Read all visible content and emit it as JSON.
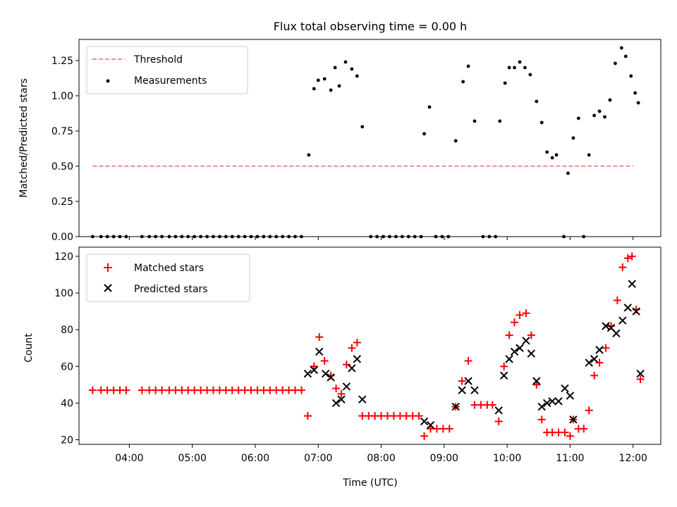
{
  "chart_data": [
    {
      "panel": "top",
      "type": "scatter",
      "title": "Flux total observing time = 0.00 h",
      "xlabel": "",
      "ylabel": "Matched/Predicted stars",
      "xlim_hours": [
        3.2,
        12.44
      ],
      "ylim": [
        0.0,
        1.4
      ],
      "yticks": [
        "0.00",
        "0.25",
        "0.50",
        "0.75",
        "1.00",
        "1.25"
      ],
      "legend_position": "top-left",
      "grid": false,
      "threshold": {
        "name": "Threshold",
        "value": 0.5,
        "x_range": [
          "03:25",
          "12:00"
        ],
        "color": "#f08080",
        "style": "dashed"
      },
      "series": [
        {
          "name": "Measurements",
          "color": "#000000",
          "marker": "dot",
          "points": [
            [
              "03:25",
              0
            ],
            [
              "03:33",
              0
            ],
            [
              "03:39",
              0
            ],
            [
              "03:45",
              0
            ],
            [
              "03:51",
              0
            ],
            [
              "03:57",
              0
            ],
            [
              "04:12",
              0
            ],
            [
              "04:19",
              0
            ],
            [
              "04:25",
              0
            ],
            [
              "04:31",
              0
            ],
            [
              "04:38",
              0
            ],
            [
              "04:44",
              0
            ],
            [
              "04:50",
              0
            ],
            [
              "04:56",
              0
            ],
            [
              "05:02",
              0
            ],
            [
              "05:08",
              0
            ],
            [
              "05:14",
              0
            ],
            [
              "05:20",
              0
            ],
            [
              "05:26",
              0
            ],
            [
              "05:32",
              0
            ],
            [
              "05:38",
              0
            ],
            [
              "05:44",
              0
            ],
            [
              "05:50",
              0
            ],
            [
              "05:56",
              0
            ],
            [
              "06:02",
              0
            ],
            [
              "06:08",
              0
            ],
            [
              "06:14",
              0
            ],
            [
              "06:20",
              0
            ],
            [
              "06:26",
              0
            ],
            [
              "06:32",
              0
            ],
            [
              "06:38",
              0
            ],
            [
              "06:44",
              0
            ],
            [
              "06:51",
              0.58
            ],
            [
              "06:56",
              1.05
            ],
            [
              "07:00",
              1.11
            ],
            [
              "07:06",
              1.12
            ],
            [
              "07:12",
              1.04
            ],
            [
              "07:16",
              1.2
            ],
            [
              "07:20",
              1.07
            ],
            [
              "07:26",
              1.24
            ],
            [
              "07:32",
              1.19
            ],
            [
              "07:37",
              1.14
            ],
            [
              "07:42",
              0.78
            ],
            [
              "07:50",
              0
            ],
            [
              "07:56",
              0
            ],
            [
              "08:02",
              0
            ],
            [
              "08:08",
              0
            ],
            [
              "08:14",
              0
            ],
            [
              "08:20",
              0
            ],
            [
              "08:26",
              0
            ],
            [
              "08:32",
              0
            ],
            [
              "08:38",
              0
            ],
            [
              "08:41",
              0.73
            ],
            [
              "08:46",
              0.92
            ],
            [
              "08:52",
              0
            ],
            [
              "08:58",
              0
            ],
            [
              "09:04",
              0
            ],
            [
              "09:11",
              0.68
            ],
            [
              "09:18",
              1.1
            ],
            [
              "09:23",
              1.21
            ],
            [
              "09:29",
              0.82
            ],
            [
              "09:37",
              0
            ],
            [
              "09:43",
              0
            ],
            [
              "09:49",
              0
            ],
            [
              "09:53",
              0.82
            ],
            [
              "09:58",
              1.09
            ],
            [
              "10:02",
              1.2
            ],
            [
              "10:07",
              1.2
            ],
            [
              "10:12",
              1.24
            ],
            [
              "10:17",
              1.2
            ],
            [
              "10:22",
              1.15
            ],
            [
              "10:28",
              0.96
            ],
            [
              "10:33",
              0.81
            ],
            [
              "10:38",
              0.6
            ],
            [
              "10:43",
              0.56
            ],
            [
              "10:47",
              0.58
            ],
            [
              "10:54",
              0
            ],
            [
              "10:58",
              0.45
            ],
            [
              "11:03",
              0.7
            ],
            [
              "11:08",
              0.84
            ],
            [
              "11:13",
              0
            ],
            [
              "11:18",
              0.58
            ],
            [
              "11:23",
              0.86
            ],
            [
              "11:28",
              0.89
            ],
            [
              "11:33",
              0.85
            ],
            [
              "11:38",
              0.97
            ],
            [
              "11:43",
              1.23
            ],
            [
              "11:49",
              1.34
            ],
            [
              "11:53",
              1.28
            ],
            [
              "11:58",
              1.14
            ],
            [
              "12:02",
              1.02
            ],
            [
              "12:05",
              0.95
            ]
          ]
        }
      ]
    },
    {
      "panel": "bottom",
      "type": "scatter",
      "title": "",
      "xlabel": "Time (UTC)",
      "ylabel": "Count",
      "xlim_hours": [
        3.2,
        12.44
      ],
      "ylim": [
        17.5,
        125
      ],
      "yticks": [
        "20",
        "40",
        "60",
        "80",
        "100",
        "120"
      ],
      "xticks": [
        "04:00",
        "05:00",
        "06:00",
        "07:00",
        "08:00",
        "09:00",
        "10:00",
        "11:00",
        "12:00"
      ],
      "legend_position": "top-left",
      "grid": false,
      "series": [
        {
          "name": "Matched stars",
          "color": "#ff0000",
          "marker": "plus",
          "points": [
            [
              "03:25",
              47
            ],
            [
              "03:33",
              47
            ],
            [
              "03:39",
              47
            ],
            [
              "03:45",
              47
            ],
            [
              "03:51",
              47
            ],
            [
              "03:57",
              47
            ],
            [
              "04:12",
              47
            ],
            [
              "04:19",
              47
            ],
            [
              "04:25",
              47
            ],
            [
              "04:31",
              47
            ],
            [
              "04:38",
              47
            ],
            [
              "04:44",
              47
            ],
            [
              "04:50",
              47
            ],
            [
              "04:56",
              47
            ],
            [
              "05:02",
              47
            ],
            [
              "05:08",
              47
            ],
            [
              "05:14",
              47
            ],
            [
              "05:20",
              47
            ],
            [
              "05:26",
              47
            ],
            [
              "05:32",
              47
            ],
            [
              "05:38",
              47
            ],
            [
              "05:44",
              47
            ],
            [
              "05:50",
              47
            ],
            [
              "05:56",
              47
            ],
            [
              "06:02",
              47
            ],
            [
              "06:08",
              47
            ],
            [
              "06:14",
              47
            ],
            [
              "06:20",
              47
            ],
            [
              "06:26",
              47
            ],
            [
              "06:32",
              47
            ],
            [
              "06:38",
              47
            ],
            [
              "06:44",
              47
            ],
            [
              "06:50",
              33
            ],
            [
              "06:56",
              60
            ],
            [
              "07:01",
              76
            ],
            [
              "07:06",
              63
            ],
            [
              "07:12",
              55
            ],
            [
              "07:17",
              48
            ],
            [
              "07:22",
              45
            ],
            [
              "07:27",
              61
            ],
            [
              "07:32",
              70
            ],
            [
              "07:37",
              73
            ],
            [
              "07:42",
              33
            ],
            [
              "07:48",
              33
            ],
            [
              "07:54",
              33
            ],
            [
              "08:00",
              33
            ],
            [
              "08:06",
              33
            ],
            [
              "08:12",
              33
            ],
            [
              "08:18",
              33
            ],
            [
              "08:24",
              33
            ],
            [
              "08:30",
              33
            ],
            [
              "08:36",
              33
            ],
            [
              "08:41",
              22
            ],
            [
              "08:47",
              26
            ],
            [
              "08:53",
              26
            ],
            [
              "08:59",
              26
            ],
            [
              "09:05",
              26
            ],
            [
              "09:11",
              38
            ],
            [
              "09:17",
              52
            ],
            [
              "09:23",
              63
            ],
            [
              "09:29",
              39
            ],
            [
              "09:35",
              39
            ],
            [
              "09:41",
              39
            ],
            [
              "09:46",
              39
            ],
            [
              "09:52",
              30
            ],
            [
              "09:57",
              60
            ],
            [
              "10:02",
              77
            ],
            [
              "10:07",
              84
            ],
            [
              "10:12",
              88
            ],
            [
              "10:18",
              89
            ],
            [
              "10:23",
              77
            ],
            [
              "10:28",
              50
            ],
            [
              "10:33",
              31
            ],
            [
              "10:38",
              24
            ],
            [
              "10:43",
              24
            ],
            [
              "10:49",
              24
            ],
            [
              "10:55",
              24
            ],
            [
              "11:00",
              22
            ],
            [
              "11:03",
              31
            ],
            [
              "11:08",
              26
            ],
            [
              "11:13",
              26
            ],
            [
              "11:18",
              36
            ],
            [
              "11:23",
              55
            ],
            [
              "11:28",
              62
            ],
            [
              "11:34",
              70
            ],
            [
              "11:39",
              82
            ],
            [
              "11:45",
              96
            ],
            [
              "11:50",
              114
            ],
            [
              "11:55",
              119
            ],
            [
              "11:59",
              120
            ],
            [
              "12:03",
              91
            ],
            [
              "12:07",
              53
            ]
          ]
        },
        {
          "name": "Predicted stars",
          "color": "#000000",
          "marker": "x",
          "points": [
            [
              "06:50",
              56
            ],
            [
              "06:56",
              58
            ],
            [
              "07:01",
              68
            ],
            [
              "07:07",
              56
            ],
            [
              "07:12",
              54
            ],
            [
              "07:17",
              40
            ],
            [
              "07:22",
              42
            ],
            [
              "07:27",
              49
            ],
            [
              "07:32",
              59
            ],
            [
              "07:37",
              64
            ],
            [
              "07:42",
              42
            ],
            [
              "08:41",
              30
            ],
            [
              "08:47",
              28
            ],
            [
              "09:11",
              38
            ],
            [
              "09:17",
              47
            ],
            [
              "09:23",
              52
            ],
            [
              "09:29",
              47
            ],
            [
              "09:52",
              36
            ],
            [
              "09:57",
              55
            ],
            [
              "10:02",
              64
            ],
            [
              "10:07",
              68
            ],
            [
              "10:12",
              70
            ],
            [
              "10:18",
              74
            ],
            [
              "10:23",
              67
            ],
            [
              "10:28",
              52
            ],
            [
              "10:33",
              38
            ],
            [
              "10:38",
              40
            ],
            [
              "10:43",
              41
            ],
            [
              "10:49",
              41
            ],
            [
              "10:55",
              48
            ],
            [
              "11:00",
              44
            ],
            [
              "11:03",
              31
            ],
            [
              "11:18",
              62
            ],
            [
              "11:23",
              64
            ],
            [
              "11:28",
              69
            ],
            [
              "11:34",
              82
            ],
            [
              "11:39",
              81
            ],
            [
              "11:44",
              78
            ],
            [
              "11:50",
              85
            ],
            [
              "11:55",
              92
            ],
            [
              "11:59",
              105
            ],
            [
              "12:03",
              90
            ],
            [
              "12:07",
              56
            ]
          ]
        }
      ]
    }
  ]
}
